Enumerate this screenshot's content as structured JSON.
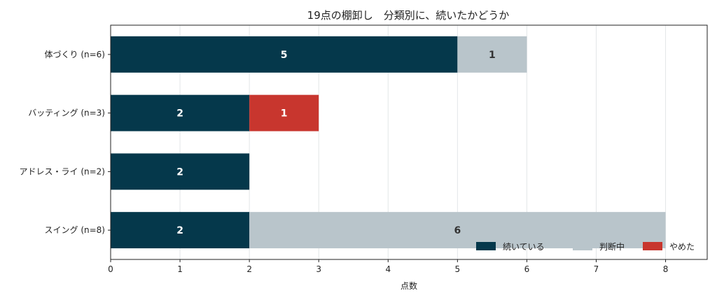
{
  "chart_data": {
    "type": "bar",
    "orientation": "horizontal",
    "stacked": true,
    "title": "19点の棚卸し　分類別に、続いたかどうか",
    "xlabel": "点数",
    "ylabel": "",
    "xlim": [
      0,
      8.6
    ],
    "xticks": [
      "0",
      "1",
      "2",
      "3",
      "4",
      "5",
      "6",
      "7",
      "8"
    ],
    "grid": "vertical",
    "legend_position": "lower-right",
    "categories": [
      "体づくり (n=6)",
      "バッティング (n=3)",
      "アドレス・ライ (n=2)",
      "スイング (n=8)"
    ],
    "series": [
      {
        "name": "続いている",
        "color": "#05384b",
        "label_color": "#ffffff",
        "values": [
          5,
          2,
          2,
          2
        ]
      },
      {
        "name": "判断中",
        "color": "#b9c5cb",
        "label_color": "#333333",
        "values": [
          1,
          0,
          0,
          6
        ]
      },
      {
        "name": "やめた",
        "color": "#c8362e",
        "label_color": "#ffffff",
        "values": [
          0,
          1,
          0,
          0
        ]
      }
    ]
  }
}
